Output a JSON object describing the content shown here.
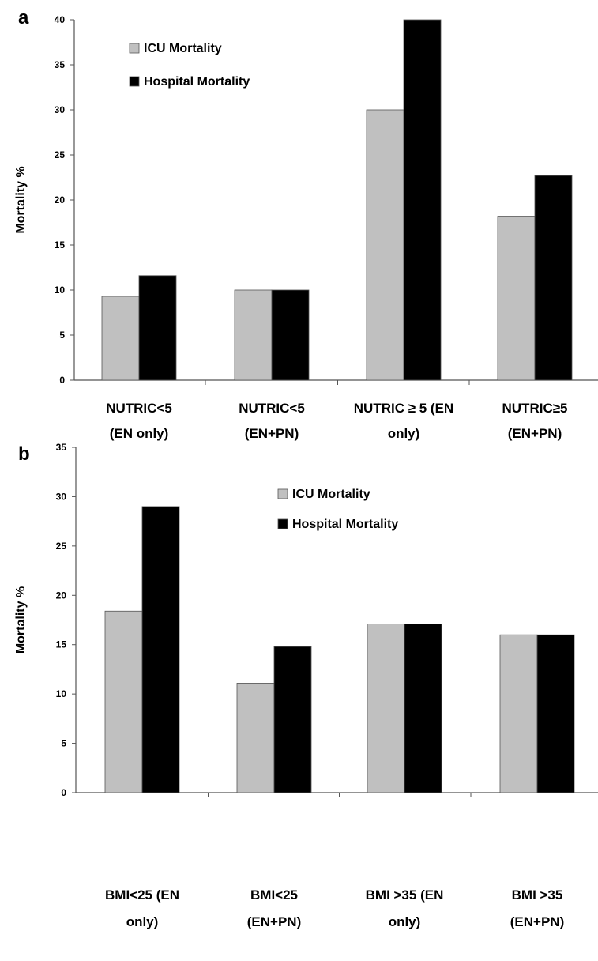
{
  "chart_data": [
    {
      "type": "bar",
      "panel_label": "a",
      "title": "",
      "xlabel": "",
      "ylabel": "Mortality %",
      "ylim": [
        0,
        40
      ],
      "yticks": [
        0,
        5,
        10,
        15,
        20,
        25,
        30,
        35,
        40
      ],
      "categories": [
        [
          "NUTRIC<5",
          "(EN only)"
        ],
        [
          "NUTRIC<5",
          "(EN+PN)"
        ],
        [
          "NUTRIC ≥ 5 (EN",
          "only)"
        ],
        [
          "NUTRIC≥5",
          "(EN+PN)"
        ]
      ],
      "series": [
        {
          "name": "ICU Mortality",
          "color": "#c0c0c0",
          "values": [
            9.3,
            10,
            30,
            18.2
          ]
        },
        {
          "name": "Hospital Mortality",
          "color": "#000000",
          "values": [
            11.6,
            10,
            40,
            22.7
          ]
        }
      ],
      "legend_position": "top-left",
      "grid": false
    },
    {
      "type": "bar",
      "panel_label": "b",
      "title": "",
      "xlabel": "",
      "ylabel": "Mortality %",
      "ylim": [
        0,
        35
      ],
      "yticks": [
        0,
        5,
        10,
        15,
        20,
        25,
        30,
        35
      ],
      "categories": [
        [
          "BMI<25    (EN",
          "only)"
        ],
        [
          "BMI<25",
          "(EN+PN)"
        ],
        [
          "BMI >35    (EN",
          "only)"
        ],
        [
          "BMI >35",
          "(EN+PN)"
        ]
      ],
      "series": [
        {
          "name": "ICU Mortality",
          "color": "#c0c0c0",
          "values": [
            18.4,
            11.1,
            17.1,
            16
          ]
        },
        {
          "name": "Hospital Mortality",
          "color": "#000000",
          "values": [
            29,
            14.8,
            17.1,
            16
          ]
        }
      ],
      "legend_position": "top-center",
      "grid": false
    }
  ]
}
